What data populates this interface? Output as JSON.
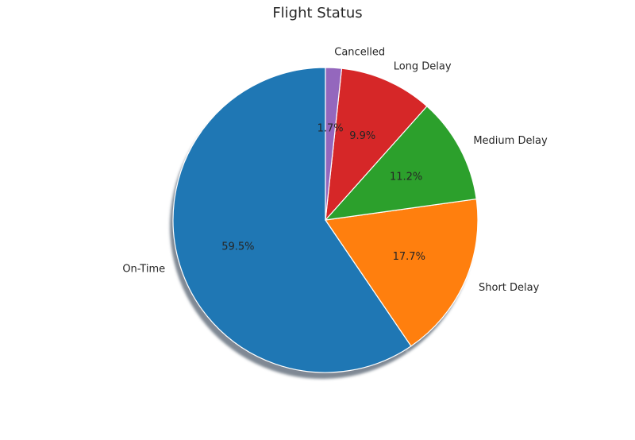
{
  "chart_data": {
    "type": "pie",
    "title": "Flight Status",
    "categories": [
      "On-Time",
      "Short Delay",
      "Medium Delay",
      "Long Delay",
      "Cancelled"
    ],
    "values": [
      59.5,
      17.7,
      11.2,
      9.9,
      1.7
    ],
    "value_labels": [
      "59.5%",
      "17.7%",
      "11.2%",
      "9.9%",
      "1.7%"
    ],
    "colors": [
      "#1f77b4",
      "#ff7f0e",
      "#2ca02c",
      "#d62728",
      "#9467bd"
    ],
    "start_angle": "top",
    "direction": "counterclockwise",
    "shadow": true
  }
}
